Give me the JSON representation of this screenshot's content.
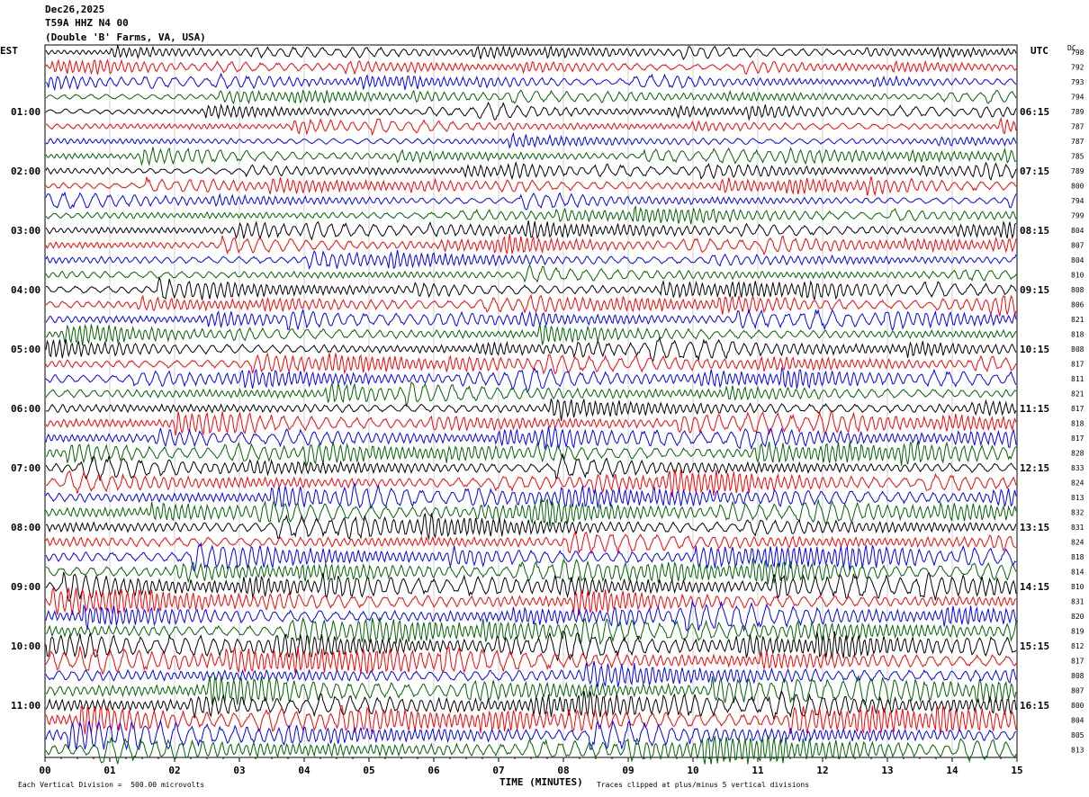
{
  "header": {
    "date": "Dec26,2025",
    "station": "T59A HHZ N4 00",
    "location": "(Double 'B' Farms, VA, USA)"
  },
  "left_tz": "EST",
  "right_tz": "UTC",
  "dc_label": "DC",
  "footer": {
    "scale_note": "Each Vertical Division =  500.00 microvolts",
    "clip_note": "Traces clipped at plus/minus 5 vertical divisions"
  },
  "colors": [
    "#000000",
    "#ff0000",
    "#0000ff",
    "#006400"
  ],
  "chart_data": {
    "type": "line",
    "xlabel": "TIME (MINUTES)",
    "xlim": [
      0,
      15
    ],
    "x_ticks": [
      "00",
      "01",
      "02",
      "03",
      "04",
      "05",
      "06",
      "07",
      "08",
      "09",
      "10",
      "11",
      "12",
      "13",
      "14",
      "15"
    ],
    "left_time_labels": [
      "01:00",
      "02:00",
      "03:00",
      "04:00",
      "05:00",
      "06:00",
      "07:00",
      "08:00",
      "09:00",
      "10:00",
      "11:00"
    ],
    "right_time_labels": [
      "06:15",
      "07:15",
      "08:15",
      "09:15",
      "10:15",
      "11:15",
      "12:15",
      "13:15",
      "14:15",
      "15:15",
      "16:15"
    ],
    "dc_offsets": [
      "798",
      "792",
      "793",
      "794",
      "789",
      "787",
      "787",
      "785",
      "789",
      "800",
      "794",
      "799",
      "804",
      "807",
      "804",
      "810",
      "808",
      "806",
      "821",
      "818",
      "808",
      "817",
      "811",
      "821",
      "817",
      "818",
      "817",
      "828",
      "833",
      "824",
      "813",
      "832",
      "831",
      "824",
      "818",
      "814",
      "810",
      "831",
      "820",
      "819",
      "812",
      "817",
      "808",
      "807",
      "800",
      "804",
      "805",
      "813"
    ],
    "trace_count": 48,
    "trace_colors_cycle": [
      "black",
      "red",
      "blue",
      "green"
    ]
  }
}
